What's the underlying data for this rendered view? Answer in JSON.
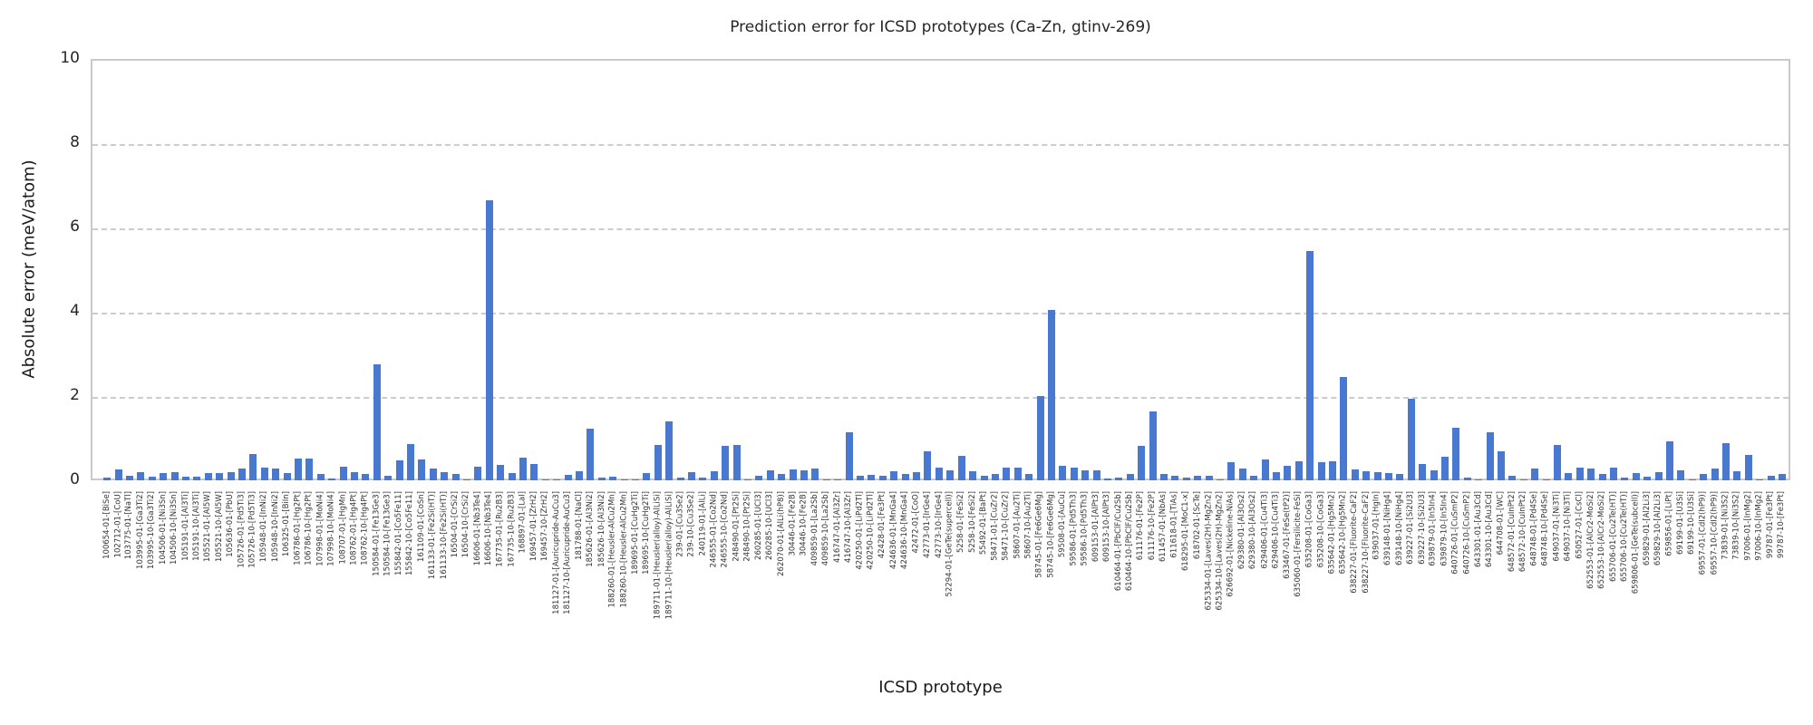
{
  "figure": {
    "title": "Prediction error for ICSD prototypes (Ca-Zn, gtinv-269)",
    "xlabel": "ICSD prototype",
    "ylabel": "Absolute error (meV/atom)"
  },
  "chart_data": {
    "type": "bar",
    "title": "Prediction error for ICSD prototypes (Ca-Zn, gtinv-269)",
    "xlabel": "ICSD prototype",
    "ylabel": "Absolute error (meV/atom)",
    "ylim": [
      0,
      10
    ],
    "yticks": [
      0,
      2,
      4,
      6,
      8,
      10
    ],
    "grid": true,
    "grid_style": "dashed",
    "bar_color": "#4878d0",
    "legend": "none",
    "categories": [
      "100654-01-[BiSe]",
      "102712-01-[CoU]",
      "103775-01-[NaTl]",
      "103995-01-[Ga3Ti2]",
      "103995-10-[Ga3Ti2]",
      "104506-01-[Ni3Sn]",
      "104506-10-[Ni3Sn]",
      "105191-01-[Al3Ti]",
      "105191-10-[Al3Ti]",
      "105521-01-[Al5W]",
      "105521-10-[Al5W]",
      "105636-01-[PbU]",
      "105726-01-[Pd5Ti3]",
      "105726-10-[Pd5Ti3]",
      "105948-01-[InNi2]",
      "105948-10-[InNi2]",
      "106325-01-[BiIn]",
      "106786-01-[Hg2Pt]",
      "106786-10-[Hg2Pt]",
      "107998-01-[MoNi4]",
      "107998-10-[MoNi4]",
      "108707-01-[HgMn]",
      "108762-01-[Hg4Pt]",
      "108762-10-[Hg4Pt]",
      "150584-01-[Fe13Ge3]",
      "150584-10-[Fe13Ge3]",
      "155842-01-[Co5Fe11]",
      "155842-10-[Co5Fe11]",
      "161109-01-[CoSn]",
      "161133-01-[Fe2Si(HT)]",
      "161133-10-[Fe2Si(HT)]",
      "16504-01-[CrSi2]",
      "16504-10-[CrSi2]",
      "16606-01-[Nb3Te4]",
      "16606-10-[Nb3Te4]",
      "167735-01-[Ru2B3]",
      "167735-10-[Ru2B3]",
      "168897-01-[LaI]",
      "169457-01-[ZrH2]",
      "169457-10-[ZrH2]",
      "181127-01-[Auricupride-AuCu3]",
      "181127-10-[Auricupride-AuCu3]",
      "181788-01-[NaCl]",
      "185626-01-[Al3Ni2]",
      "185626-10-[Al3Ni2]",
      "188260-01-[Heusler-AlCu2Mn]",
      "188260-10-[Heusler-AlCu2Mn]",
      "189695-01-[CuHg2Ti]",
      "189695-10-[CuHg2Ti]",
      "189711-01-[Heusler(alloy)-AlLiSi]",
      "189711-10-[Heusler(alloy)-AlLiSi]",
      "239-01-[Cu3Se2]",
      "239-10-[Cu3Se2]",
      "240119-01-[AlLi]",
      "246555-01-[Co2Nd]",
      "246555-10-[Co2Nd]",
      "248490-01-[Pt2Si]",
      "248490-10-[Pt2Si]",
      "260285-01-[UCl3]",
      "260285-10-[UCl3]",
      "262070-01-[AlLi(hP8)]",
      "30446-01-[Fe2B]",
      "30446-10-[Fe2B]",
      "409859-01-[La2Sb]",
      "409859-10-[La2Sb]",
      "416747-01-[Al3Zr]",
      "416747-10-[Al3Zr]",
      "420250-01-[LiPd2Tl]",
      "420250-10-[LiPd2Tl]",
      "42428-01-[Fe3Pt]",
      "424636-01-[MnGa4]",
      "424636-10-[MnGa4]",
      "42472-01-[CoO]",
      "42773-01-[IrGe4]",
      "42773-10-[IrGe4]",
      "52294-01-[GeTe(supercell)]",
      "5258-01-[FeSi2]",
      "5258-10-[FeSi2]",
      "55492-01-[BaPt]",
      "58471-01-[CuZr2]",
      "58471-10-[CuZr2]",
      "58607-01-[Au2Ti]",
      "58607-10-[Au2Ti]",
      "58745-01-[Fe6Ge6Mg]",
      "58745-10-[Fe6Ge6Mg]",
      "59508-01-[AuCu]",
      "59586-01-[Pd5Th3]",
      "59586-10-[Pd5Th3]",
      "609153-01-[AlPt3]",
      "609153-10-[AlPt3]",
      "610464-01-[PbClF/Cu2Sb]",
      "610464-10-[PbClF/Cu2Sb]",
      "611176-01-[Fe2P]",
      "611176-10-[Fe2P]",
      "611457-01-[NbAs]",
      "611618-01-[TiAs]",
      "618295-01-[MoC1-x]",
      "618702-01-[ScTe]",
      "625334-01-[Laves(2H)-MgZn2]",
      "625334-10-[Laves(2H)-MgZn2]",
      "626692-01-[Nickeline-NiAs]",
      "629380-01-[Al3Os2]",
      "629380-10-[Al3Os2]",
      "629406-01-[Cu4Ti3]",
      "629406-10-[Cu4Ti3]",
      "633467-01-[FeSe(tP2)]",
      "635060-01-[Fersilicite-FeSi]",
      "635208-01-[CoGa3]",
      "635208-10-[CoGa3]",
      "635642-01-[Hg5Mn2]",
      "635642-10-[Hg5Mn2]",
      "638227-01-[Fluorite-CaF2]",
      "638227-10-[Fluorite-CaF2]",
      "639037-01-[HgIn]",
      "639148-01-[NiHg4]",
      "639148-10-[NiHg4]",
      "639227-01-[Si2U3]",
      "639227-10-[Si2U3]",
      "639879-01-[In5In4]",
      "639879-10-[In5In4]",
      "640726-01-[CuSmP2]",
      "640726-10-[CuSmP2]",
      "643301-01-[Au3Cd]",
      "643301-10-[Au3Cd]",
      "644708-01-[WC]",
      "648572-01-[CuInPt2]",
      "648572-10-[CuInPt2]",
      "648748-01-[Pd4Se]",
      "648748-10-[Pd4Se]",
      "649037-01-[Ni3Ti]",
      "649037-10-[Ni3Ti]",
      "650527-01-[CsCl]",
      "652553-01-[AlCr2-MoSi2]",
      "652553-10-[AlCr2-MoSi2]",
      "655706-01-[Cu2Te(HT)]",
      "655706-10-[Cu2Te(HT)]",
      "659806-01-[GeTe(subcell)]",
      "659829-01-[Al2Li3]",
      "659829-10-[Al2Li3]",
      "659856-01-[LiPt]",
      "69199-01-[U3Si]",
      "69199-10-[U3Si]",
      "69557-01-[CdI2(hP9)]",
      "69557-10-[CdI2(hP9)]",
      "73839-01-[Ni3S2]",
      "73839-10-[Ni3S2]",
      "97006-01-[InMg2]",
      "97006-10-[InMg2]",
      "99787-01-[Fe3Pt]",
      "99787-10-[Fe3Pt]"
    ],
    "values": [
      0.07,
      0.25,
      0.1,
      0.2,
      0.09,
      0.18,
      0.2,
      0.09,
      0.09,
      0.18,
      0.18,
      0.2,
      0.29,
      0.62,
      0.3,
      0.28,
      0.18,
      0.52,
      0.51,
      0.16,
      0.04,
      0.33,
      0.2,
      0.14,
      2.76,
      0.1,
      0.47,
      0.87,
      0.49,
      0.29,
      0.2,
      0.16,
      0.03,
      0.33,
      6.65,
      0.36,
      0.18,
      0.54,
      0.39,
      0.03,
      0.02,
      0.13,
      0.21,
      1.22,
      0.06,
      0.09,
      0.02,
      0.02,
      0.18,
      0.84,
      1.4,
      0.06,
      0.2,
      0.06,
      0.21,
      0.82,
      0.84,
      0.03,
      0.11,
      0.23,
      0.14,
      0.25,
      0.23,
      0.29,
      0.02,
      0.02,
      1.14,
      0.11,
      0.13,
      0.11,
      0.21,
      0.16,
      0.2,
      0.68,
      0.3,
      0.23,
      0.59,
      0.21,
      0.11,
      0.16,
      0.3,
      0.3,
      0.16,
      1.99,
      4.04,
      0.34,
      0.3,
      0.23,
      0.23,
      0.04,
      0.06,
      0.16,
      0.82,
      1.63,
      0.16,
      0.11,
      0.06,
      0.11,
      0.11,
      0.02,
      0.44,
      0.27,
      0.11,
      0.49,
      0.2,
      0.34,
      0.46,
      5.45,
      0.44,
      0.46,
      2.46,
      0.25,
      0.21,
      0.2,
      0.18,
      0.14,
      1.93,
      0.39,
      0.23,
      0.56,
      1.25,
      0.06,
      0.02,
      1.14,
      0.68,
      0.11,
      0.02,
      0.29,
      0.02,
      0.84,
      0.18,
      0.3,
      0.29,
      0.14,
      0.3,
      0.07,
      0.18,
      0.09,
      0.2,
      0.93,
      0.23,
      0.02,
      0.16,
      0.27,
      0.89,
      0.21,
      0.61,
      0.02,
      0.11,
      0.15
    ]
  }
}
